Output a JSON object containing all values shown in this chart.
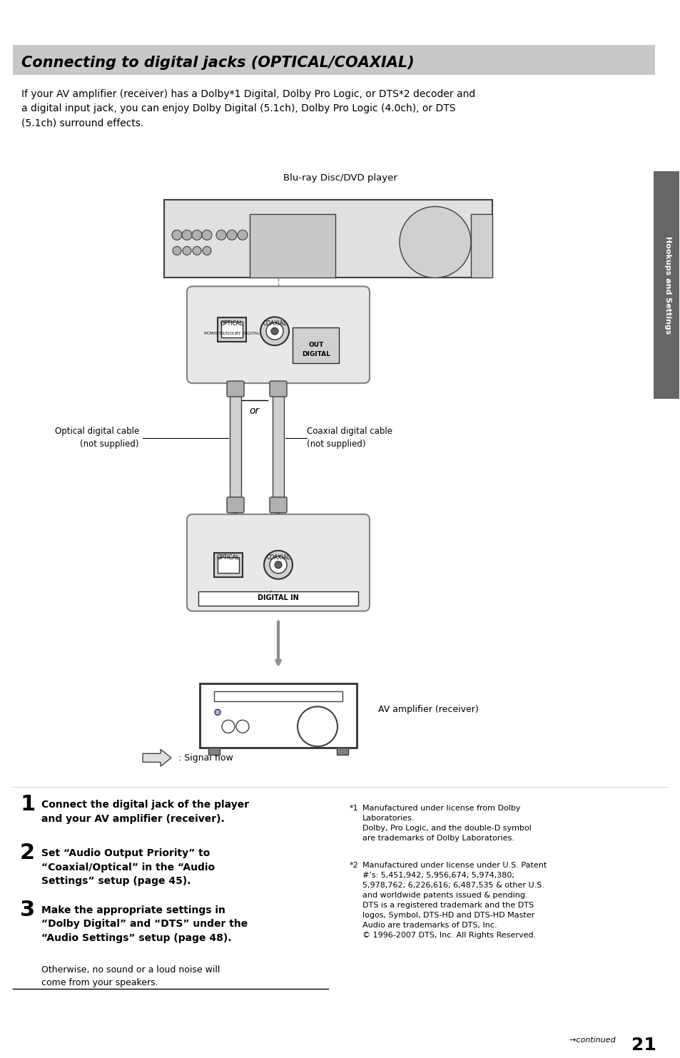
{
  "title": "Connecting to digital jacks (OPTICAL/COAXIAL)",
  "title_bg": "#c8c8c8",
  "page_bg": "#ffffff",
  "body_text": "If your AV amplifier (receiver) has a Dolby*1 Digital, Dolby Pro Logic, or DTS*2 decoder and\na digital input jack, you can enjoy Dolby Digital (5.1ch), Dolby Pro Logic (4.0ch), or DTS\n(5.1ch) surround effects.",
  "bluray_label": "Blu-ray Disc/DVD player",
  "or_text": "or",
  "optical_cable_label": "Optical digital cable\n(not supplied)",
  "coaxial_cable_label": "Coaxial digital cable\n(not supplied)",
  "av_amp_label": "AV amplifier (receiver)",
  "signal_flow_label": ": Signal flow",
  "hookups_label": "Hookups and Settings",
  "step1_num": "1",
  "step1_text": "Connect the digital jack of the player\nand your AV amplifier (receiver).",
  "step2_num": "2",
  "step2_text": "Set “Audio Output Priority” to\n“Coaxial/Optical” in the “Audio\nSettings” setup (page 45).",
  "step3_num": "3",
  "step3_text": "Make the appropriate settings in\n“Dolby Digital” and “DTS” under the\n“Audio Settings” setup (page 48).",
  "step3_sub": "Otherwise, no sound or a loud noise will\ncome from your speakers.",
  "footnote1_label": "*1",
  "footnote1_text": "Manufactured under license from Dolby\nLaboratories.\nDolby, Pro Logic, and the double-D symbol\nare trademarks of Dolby Laboratories.",
  "footnote2_label": "*2",
  "footnote2_text": "Manufactured under license under U.S. Patent\n#’s: 5,451,942; 5,956,674; 5,974,380;\n5,978,762; 6,226,616; 6,487,535 & other U.S.\nand worldwide patents issued & pending.\nDTS is a registered trademark and the DTS\nlogos, Symbol, DTS-HD and DTS-HD Master\nAudio are trademarks of DTS, Inc.\n© 1996-2007 DTS, Inc. All Rights Reserved.",
  "continued_text": "continued",
  "page_num": "21"
}
